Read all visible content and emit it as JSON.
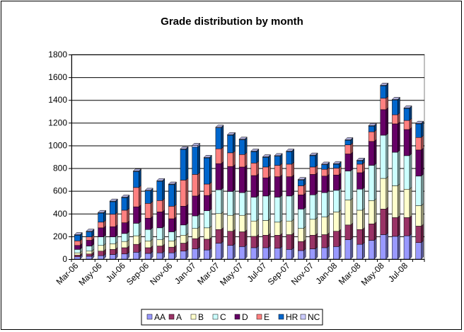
{
  "chart_data": {
    "type": "bar",
    "stacked": true,
    "title": "Grade distribution by month",
    "xlabel": "",
    "ylabel": "",
    "ylim": [
      0,
      1800
    ],
    "yticks": [
      0,
      200,
      400,
      600,
      800,
      1000,
      1200,
      1400,
      1600,
      1800
    ],
    "grid": true,
    "legend_position": "bottom",
    "categories": [
      "Mar-06",
      "Apr-06",
      "May-06",
      "Jun-06",
      "Jul-06",
      "Aug-06",
      "Sep-06",
      "Oct-06",
      "Nov-06",
      "Dec-06",
      "Jan-07",
      "Feb-07",
      "Mar-07",
      "Apr-07",
      "May-07",
      "Jun-07",
      "Jul-07",
      "Aug-07",
      "Sep-07",
      "Oct-07",
      "Nov-07",
      "Dec-07",
      "Jan-08",
      "Feb-08",
      "Mar-08",
      "Apr-08",
      "May-08",
      "Jun-08",
      "Jul-08",
      "Aug-08"
    ],
    "xtick_labels": [
      "Mar-06",
      "May-06",
      "Jul-06",
      "Sep-06",
      "Nov-06",
      "Jan-07",
      "Mar-07",
      "May-07",
      "Jul-07",
      "Sep-07",
      "Nov-07",
      "Jan-08",
      "Mar-08",
      "May-08",
      "Jul-08"
    ],
    "series": [
      {
        "name": "AA",
        "color": "#9999ff",
        "values": [
          20,
          25,
          30,
          40,
          45,
          60,
          50,
          55,
          55,
          70,
          90,
          80,
          140,
          120,
          110,
          100,
          100,
          95,
          85,
          75,
          90,
          100,
          110,
          170,
          130,
          165,
          215,
          200,
          205,
          145
        ]
      },
      {
        "name": "A",
        "color": "#993366",
        "values": [
          15,
          20,
          40,
          45,
          55,
          70,
          50,
          60,
          50,
          70,
          90,
          95,
          120,
          125,
          130,
          100,
          110,
          115,
          130,
          80,
          120,
          115,
          135,
          130,
          130,
          145,
          225,
          165,
          160,
          145
        ]
      },
      {
        "name": "B",
        "color": "#ffffcc",
        "values": [
          20,
          25,
          50,
          50,
          55,
          75,
          60,
          55,
          55,
          70,
          90,
          100,
          140,
          140,
          145,
          135,
          130,
          115,
          120,
          115,
          140,
          155,
          170,
          220,
          170,
          205,
          270,
          280,
          250,
          180
        ]
      },
      {
        "name": "C",
        "color": "#ccffff",
        "values": [
          30,
          45,
          75,
          60,
          70,
          110,
          100,
          105,
          80,
          90,
          110,
          150,
          210,
          210,
          200,
          210,
          215,
          220,
          220,
          170,
          215,
          215,
          190,
          255,
          185,
          310,
          380,
          295,
          295,
          260
        ]
      },
      {
        "name": "D",
        "color": "#660066",
        "values": [
          35,
          50,
          80,
          90,
          95,
          145,
          100,
          140,
          115,
          165,
          175,
          135,
          230,
          220,
          225,
          190,
          160,
          180,
          170,
          125,
          180,
          145,
          135,
          150,
          145,
          210,
          225,
          250,
          230,
          230
        ]
      },
      {
        "name": "E",
        "color": "#ff8080",
        "values": [
          40,
          30,
          50,
          110,
          110,
          170,
          130,
          100,
          110,
          230,
          190,
          100,
          130,
          120,
          110,
          110,
          95,
          100,
          110,
          80,
          65,
          60,
          60,
          80,
          75,
          85,
          100,
          80,
          80,
          110
        ]
      },
      {
        "name": "HR",
        "color": "#0066cc",
        "values": [
          50,
          45,
          80,
          110,
          110,
          140,
          110,
          170,
          190,
          270,
          240,
          230,
          185,
          155,
          130,
          100,
          85,
          80,
          110,
          50,
          100,
          40,
          35,
          40,
          30,
          50,
          110,
          130,
          105,
          120
        ]
      },
      {
        "name": "NC",
        "color": "#ccccff",
        "values": [
          5,
          5,
          5,
          5,
          5,
          5,
          5,
          5,
          5,
          5,
          15,
          5,
          5,
          5,
          5,
          5,
          5,
          5,
          5,
          5,
          5,
          5,
          5,
          5,
          5,
          5,
          5,
          5,
          5,
          5
        ]
      }
    ]
  }
}
